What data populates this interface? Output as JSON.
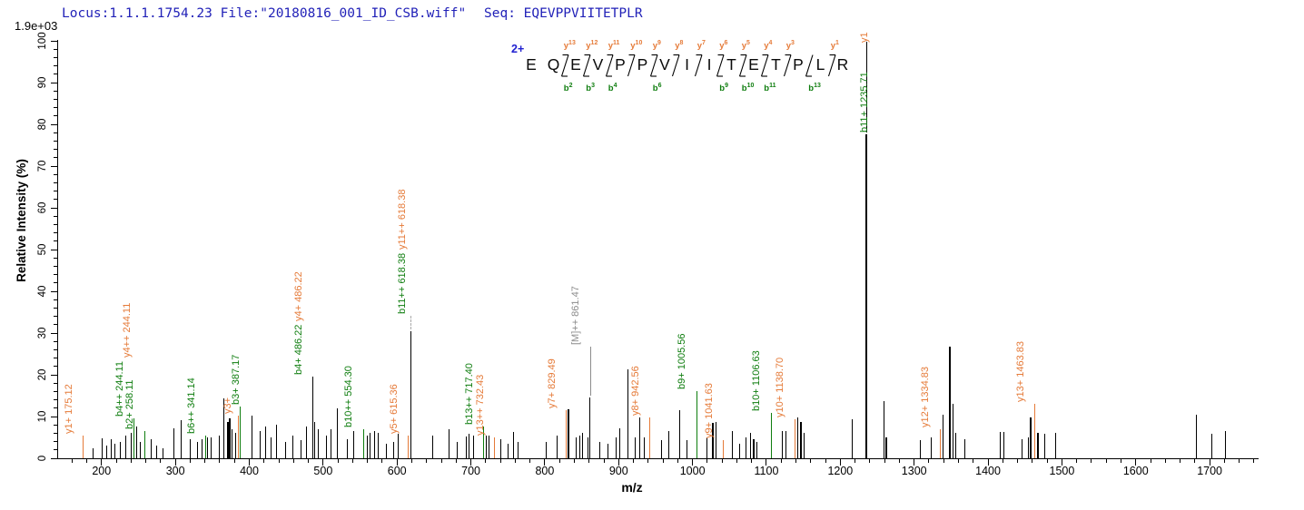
{
  "header": {
    "locus_file": "Locus:1.1.1.1754.23 File:\"20180816_001_ID_CSB.wiff\"",
    "seq_label": "Seq: EQEVPPVIITETPLR",
    "intensity_scale": "1.9e+03"
  },
  "peptide": {
    "charge": "2+",
    "residues": [
      "E",
      "Q",
      "E",
      "V",
      "P",
      "P",
      "V",
      "I",
      "I",
      "T",
      "E",
      "T",
      "P",
      "L",
      "R"
    ],
    "cleavages": [
      {
        "after": 2,
        "y": "y13",
        "b": "b2"
      },
      {
        "after": 3,
        "y": "y12",
        "b": "b3"
      },
      {
        "after": 4,
        "y": "y11",
        "b": "b4"
      },
      {
        "after": 5,
        "y": "y10"
      },
      {
        "after": 6,
        "y": "y9",
        "b": "b6"
      },
      {
        "after": 7,
        "y": "y8"
      },
      {
        "after": 8,
        "y": "y7"
      },
      {
        "after": 9,
        "y": "y6",
        "b": "b9"
      },
      {
        "after": 10,
        "y": "y5",
        "b": "b10"
      },
      {
        "after": 11,
        "y": "y4",
        "b": "b11"
      },
      {
        "after": 12,
        "y": "y3"
      },
      {
        "after": 13,
        "b": "b13"
      },
      {
        "after": 14,
        "y": "y1"
      }
    ]
  },
  "colors": {
    "b_ion": "#0e7d0e",
    "y_ion": "#e57a38",
    "precursor": "#8c8c8c",
    "peak": "#000000",
    "header_text": "#2222b8",
    "charge_text": "#2020d0",
    "axis": "#000000",
    "dashed_leader": "#a9a9a9"
  },
  "axes": {
    "x_title": "m/z",
    "y_title": "Relative Intensity (%)",
    "x_tick_labels": [
      200,
      300,
      400,
      500,
      600,
      700,
      800,
      900,
      1000,
      1100,
      1200,
      1300,
      1400,
      1500,
      1600,
      1700
    ],
    "y_tick_labels": [
      0,
      10,
      20,
      30,
      40,
      50,
      60,
      70,
      80,
      90,
      100
    ],
    "x_minor_step": 20,
    "y_minor_step": 2,
    "x_range": [
      140,
      1765
    ],
    "y_range": [
      0,
      100
    ]
  },
  "chart_data": {
    "type": "bar",
    "subtype": "MS2 fragment ion spectrum",
    "xlabel": "m/z",
    "ylabel": "Relative Intensity (%)",
    "xlim": [
      140,
      1765
    ],
    "ylim": [
      0,
      100
    ],
    "base_intensity": "1.9e+03",
    "peaks": [
      {
        "mz": 175.12,
        "h": 5.5,
        "c": "y",
        "labels": [
          {
            "t": "y1+ 175.12",
            "c": "y"
          }
        ]
      },
      {
        "mz": 189,
        "h": 2.5,
        "c": "k"
      },
      {
        "mz": 201,
        "h": 4.8,
        "c": "k"
      },
      {
        "mz": 207,
        "h": 3,
        "c": "k"
      },
      {
        "mz": 213,
        "h": 4.5,
        "c": "k"
      },
      {
        "mz": 218,
        "h": 3.5,
        "c": "k"
      },
      {
        "mz": 225,
        "h": 4,
        "c": "k"
      },
      {
        "mz": 233,
        "h": 5.5,
        "c": "k"
      },
      {
        "mz": 240,
        "h": 6,
        "c": "k"
      },
      {
        "mz": 244.11,
        "h": 9.5,
        "c": "b",
        "labels": [
          {
            "t": "b4++ 244.11",
            "c": "b"
          },
          {
            "t": "y4++ 244.11",
            "c": "y",
            "dx": 8
          }
        ]
      },
      {
        "mz": 247,
        "h": 7.6,
        "c": "k"
      },
      {
        "mz": 253,
        "h": 4,
        "c": "k"
      },
      {
        "mz": 258.11,
        "h": 6.5,
        "c": "b",
        "labels": [
          {
            "t": "b2+ 258.11",
            "c": "b"
          }
        ]
      },
      {
        "mz": 267,
        "h": 4.5,
        "c": "k"
      },
      {
        "mz": 274,
        "h": 3,
        "c": "k"
      },
      {
        "mz": 283,
        "h": 2.5,
        "c": "k"
      },
      {
        "mz": 298,
        "h": 7.2,
        "c": "k"
      },
      {
        "mz": 308,
        "h": 9.1,
        "c": "k"
      },
      {
        "mz": 320,
        "h": 4.5,
        "c": "k"
      },
      {
        "mz": 330,
        "h": 4,
        "c": "k"
      },
      {
        "mz": 336,
        "h": 4.5,
        "c": "k"
      },
      {
        "mz": 341.14,
        "h": 5.5,
        "c": "b",
        "labels": [
          {
            "t": "b6++ 341.14",
            "c": "b"
          }
        ]
      },
      {
        "mz": 344,
        "h": 5,
        "c": "k"
      },
      {
        "mz": 348,
        "h": 5,
        "c": "k"
      },
      {
        "mz": 359,
        "h": 5.5,
        "c": "k"
      },
      {
        "mz": 365,
        "h": 14.3,
        "c": "k"
      },
      {
        "mz": 371,
        "h": 8.7,
        "c": "k",
        "w": 2
      },
      {
        "mz": 374,
        "h": 9.5,
        "c": "k",
        "w": 2
      },
      {
        "mz": 377,
        "h": 7,
        "c": "k"
      },
      {
        "mz": 381,
        "h": 6,
        "c": "k"
      },
      {
        "mz": 385.3,
        "h": 10.2,
        "c": "y",
        "label_dx": -6,
        "labels": [
          {
            "t": "y3+",
            "c": "y"
          }
        ]
      },
      {
        "mz": 387.17,
        "h": 12.5,
        "c": "b",
        "label_dx": 2,
        "labels": [
          {
            "t": "b3+ 387.17",
            "c": "b"
          }
        ]
      },
      {
        "mz": 404,
        "h": 10.2,
        "c": "k"
      },
      {
        "mz": 415,
        "h": 6.5,
        "c": "k"
      },
      {
        "mz": 422,
        "h": 7.6,
        "c": "k"
      },
      {
        "mz": 430,
        "h": 5,
        "c": "k"
      },
      {
        "mz": 437,
        "h": 8,
        "c": "k"
      },
      {
        "mz": 449,
        "h": 4,
        "c": "k"
      },
      {
        "mz": 459,
        "h": 5.4,
        "c": "k"
      },
      {
        "mz": 470,
        "h": 4.3,
        "c": "k"
      },
      {
        "mz": 477,
        "h": 7.6,
        "c": "k"
      },
      {
        "mz": 486.22,
        "h": 19.6,
        "c": "k",
        "labels": [
          {
            "t": "b4+ 486.22",
            "c": "b"
          },
          {
            "t": "y4+ 486.22",
            "c": "y"
          }
        ]
      },
      {
        "mz": 489,
        "h": 8.7,
        "c": "k"
      },
      {
        "mz": 493,
        "h": 7,
        "c": "k"
      },
      {
        "mz": 504,
        "h": 5.5,
        "c": "k"
      },
      {
        "mz": 510,
        "h": 7,
        "c": "k"
      },
      {
        "mz": 519,
        "h": 12,
        "c": "k"
      },
      {
        "mz": 533,
        "h": 4.5,
        "c": "k"
      },
      {
        "mz": 541,
        "h": 6.5,
        "c": "k"
      },
      {
        "mz": 554.3,
        "h": 7,
        "c": "b",
        "labels": [
          {
            "t": "b10++ 554.30",
            "c": "b"
          }
        ]
      },
      {
        "mz": 560,
        "h": 5.5,
        "c": "k"
      },
      {
        "mz": 563,
        "h": 6,
        "c": "k"
      },
      {
        "mz": 570,
        "h": 6.5,
        "c": "k"
      },
      {
        "mz": 574,
        "h": 6,
        "c": "k"
      },
      {
        "mz": 586,
        "h": 3.5,
        "c": "k"
      },
      {
        "mz": 596,
        "h": 4,
        "c": "k"
      },
      {
        "mz": 602,
        "h": 5.8,
        "c": "k"
      },
      {
        "mz": 615.36,
        "h": 5.4,
        "c": "y",
        "labels": [
          {
            "t": "y5+ 615.36",
            "c": "y"
          }
        ]
      },
      {
        "mz": 618.38,
        "h": 30.4,
        "c": "k",
        "label_dx": -3,
        "leader": {
          "len": 15,
          "style": "dashed",
          "c": "#a9a9a9"
        },
        "labels_over_leader": true,
        "labels": [
          {
            "t": "b11++ 618.38",
            "c": "b"
          },
          {
            "t": "y11++ 618.38",
            "c": "y"
          }
        ]
      },
      {
        "mz": 648,
        "h": 5.4,
        "c": "k"
      },
      {
        "mz": 670,
        "h": 7,
        "c": "k"
      },
      {
        "mz": 682,
        "h": 4,
        "c": "k"
      },
      {
        "mz": 694,
        "h": 5.2,
        "c": "k"
      },
      {
        "mz": 697,
        "h": 5.8,
        "c": "k"
      },
      {
        "mz": 703,
        "h": 5.5,
        "c": "k"
      },
      {
        "mz": 717.4,
        "h": 7.6,
        "c": "b",
        "labels": [
          {
            "t": "b13++ 717.40",
            "c": "b"
          }
        ]
      },
      {
        "mz": 721,
        "h": 5.5,
        "c": "k"
      },
      {
        "mz": 725,
        "h": 5.5,
        "c": "k"
      },
      {
        "mz": 732.43,
        "h": 5,
        "c": "y",
        "labels": [
          {
            "t": "y13++ 732.43",
            "c": "y"
          }
        ]
      },
      {
        "mz": 740,
        "h": 4.5,
        "c": "k"
      },
      {
        "mz": 750,
        "h": 3.5,
        "c": "k"
      },
      {
        "mz": 758,
        "h": 6.2,
        "c": "k"
      },
      {
        "mz": 764,
        "h": 4,
        "c": "k"
      },
      {
        "mz": 802,
        "h": 4,
        "c": "k"
      },
      {
        "mz": 817,
        "h": 5.5,
        "c": "k"
      },
      {
        "mz": 829.49,
        "h": 11.5,
        "c": "y",
        "labels": [
          {
            "t": "y7+ 829.49",
            "c": "y"
          }
        ]
      },
      {
        "mz": 832,
        "h": 11.8,
        "c": "k",
        "w": 2
      },
      {
        "mz": 842,
        "h": 5,
        "c": "k"
      },
      {
        "mz": 848,
        "h": 5.5,
        "c": "k"
      },
      {
        "mz": 851,
        "h": 6,
        "c": "k"
      },
      {
        "mz": 858,
        "h": 5,
        "c": "k"
      },
      {
        "mz": 861.47,
        "h": 14.5,
        "c": "k",
        "leader": {
          "len": 54,
          "style": "solid",
          "c": "#8c8c8c"
        },
        "labels_over_leader": true,
        "labels": [
          {
            "t": "[M]++ 861.47",
            "c": "m"
          }
        ]
      },
      {
        "mz": 875,
        "h": 4,
        "c": "k"
      },
      {
        "mz": 885,
        "h": 3.5,
        "c": "k"
      },
      {
        "mz": 897,
        "h": 5,
        "c": "k"
      },
      {
        "mz": 901,
        "h": 7.2,
        "c": "k"
      },
      {
        "mz": 913,
        "h": 21.3,
        "c": "k"
      },
      {
        "mz": 922,
        "h": 5,
        "c": "k"
      },
      {
        "mz": 928,
        "h": 9.8,
        "c": "k"
      },
      {
        "mz": 935,
        "h": 5,
        "c": "k"
      },
      {
        "mz": 942.56,
        "h": 9.8,
        "c": "y",
        "labels": [
          {
            "t": "y8+ 942.56",
            "c": "y"
          }
        ]
      },
      {
        "mz": 958,
        "h": 4.3,
        "c": "k"
      },
      {
        "mz": 968,
        "h": 6.5,
        "c": "k"
      },
      {
        "mz": 983,
        "h": 11.6,
        "c": "k"
      },
      {
        "mz": 993,
        "h": 4.3,
        "c": "k"
      },
      {
        "mz": 1005.56,
        "h": 16,
        "c": "b",
        "labels": [
          {
            "t": "b9+ 1005.56",
            "c": "b"
          }
        ]
      },
      {
        "mz": 1020,
        "h": 5,
        "c": "k"
      },
      {
        "mz": 1028,
        "h": 8.4,
        "c": "k",
        "w": 2
      },
      {
        "mz": 1032,
        "h": 8.7,
        "c": "k"
      },
      {
        "mz": 1041.63,
        "h": 4.3,
        "c": "y",
        "labels": [
          {
            "t": "y9+ 1041.63",
            "c": "y"
          }
        ]
      },
      {
        "mz": 1054,
        "h": 6.5,
        "c": "k"
      },
      {
        "mz": 1064,
        "h": 3.5,
        "c": "k"
      },
      {
        "mz": 1072,
        "h": 5,
        "c": "k"
      },
      {
        "mz": 1078,
        "h": 6,
        "c": "k"
      },
      {
        "mz": 1083,
        "h": 4.5,
        "c": "k",
        "w": 2
      },
      {
        "mz": 1087,
        "h": 4,
        "c": "k"
      },
      {
        "mz": 1106.63,
        "h": 10.9,
        "c": "b",
        "labels": [
          {
            "t": "b10+ 1106.63",
            "c": "b"
          }
        ]
      },
      {
        "mz": 1121,
        "h": 6.5,
        "c": "k"
      },
      {
        "mz": 1127,
        "h": 6.5,
        "c": "k"
      },
      {
        "mz": 1138.7,
        "h": 9.4,
        "c": "y",
        "labels": [
          {
            "t": "y10+ 1138.70",
            "c": "y"
          }
        ]
      },
      {
        "mz": 1143,
        "h": 9.8,
        "c": "k"
      },
      {
        "mz": 1147,
        "h": 8.7,
        "c": "k",
        "w": 2
      },
      {
        "mz": 1151,
        "h": 6,
        "c": "k"
      },
      {
        "mz": 1216,
        "h": 9.4,
        "c": "k"
      },
      {
        "mz": 1235.71,
        "h": 77.6,
        "c": "k",
        "w": 2,
        "label_dx": 4,
        "leader": {
          "len": 100,
          "style": "solid",
          "c": "#000000"
        },
        "labels_over_leader": false,
        "labels": [
          {
            "t": "b11+ 1235.71",
            "c": "b"
          },
          {
            "t": "y1",
            "c": "y",
            "gap": 28
          }
        ]
      },
      {
        "mz": 1259,
        "h": 13.7,
        "c": "k"
      },
      {
        "mz": 1262,
        "h": 5,
        "c": "k",
        "w": 2
      },
      {
        "mz": 1308,
        "h": 4.3,
        "c": "k"
      },
      {
        "mz": 1323,
        "h": 5,
        "c": "k"
      },
      {
        "mz": 1334.83,
        "h": 7,
        "c": "y",
        "labels": [
          {
            "t": "y12+ 1334.83",
            "c": "y"
          }
        ]
      },
      {
        "mz": 1339,
        "h": 10.4,
        "c": "k"
      },
      {
        "mz": 1348,
        "h": 26.7,
        "c": "k",
        "w": 2
      },
      {
        "mz": 1353,
        "h": 13,
        "c": "k"
      },
      {
        "mz": 1356,
        "h": 6,
        "c": "k"
      },
      {
        "mz": 1369,
        "h": 4.6,
        "c": "k"
      },
      {
        "mz": 1416,
        "h": 6.2,
        "c": "k"
      },
      {
        "mz": 1422,
        "h": 6.2,
        "c": "k"
      },
      {
        "mz": 1446,
        "h": 4.5,
        "c": "k"
      },
      {
        "mz": 1455,
        "h": 5,
        "c": "k"
      },
      {
        "mz": 1458,
        "h": 9.8,
        "c": "k",
        "w": 2
      },
      {
        "mz": 1463.83,
        "h": 13,
        "c": "y",
        "labels": [
          {
            "t": "y13+ 1463.83",
            "c": "y"
          }
        ]
      },
      {
        "mz": 1467,
        "h": 6,
        "c": "k",
        "w": 2
      },
      {
        "mz": 1477,
        "h": 5.8,
        "c": "k"
      },
      {
        "mz": 1492,
        "h": 6,
        "c": "k"
      },
      {
        "mz": 1682,
        "h": 10.4,
        "c": "k"
      },
      {
        "mz": 1703,
        "h": 5.8,
        "c": "k"
      },
      {
        "mz": 1721,
        "h": 6.5,
        "c": "k"
      }
    ]
  }
}
